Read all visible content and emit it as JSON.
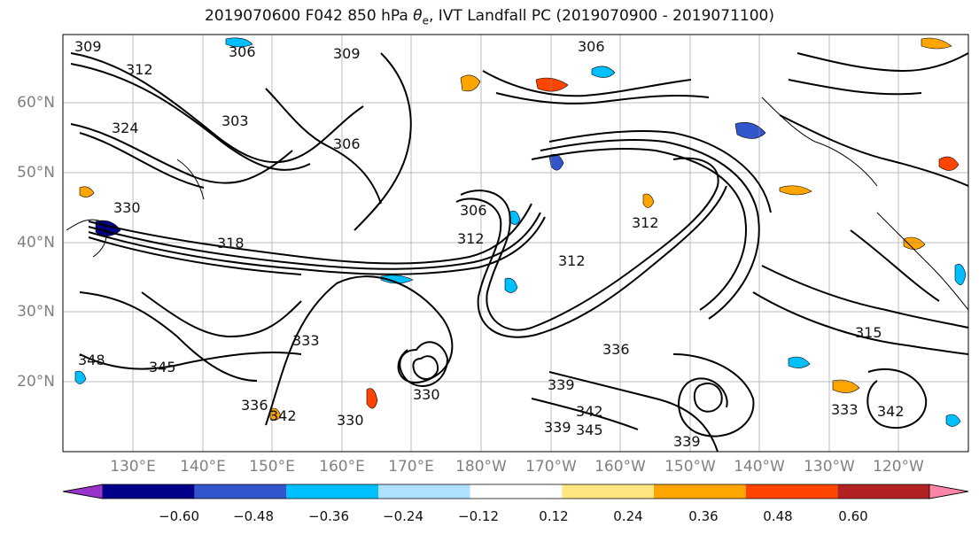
{
  "title": {
    "text_before": "2019070600 F042 850 hPa ",
    "symbol": "θ",
    "subscript": "e",
    "text_after": ", IVT Landfall PC (2019070900 - 2019071100)"
  },
  "map": {
    "lat_labels": [
      "60°N",
      "50°N",
      "40°N",
      "30°N",
      "20°N"
    ],
    "lon_labels": [
      "130°E",
      "140°E",
      "150°E",
      "160°E",
      "170°E",
      "180°W",
      "170°W",
      "160°W",
      "150°W",
      "140°W",
      "130°W",
      "120°W"
    ],
    "contour_labels": [
      "309",
      "306",
      "312",
      "303",
      "306",
      "312",
      "330",
      "318",
      "306",
      "312",
      "312",
      "339",
      "333",
      "345",
      "348",
      "330",
      "336",
      "342",
      "339",
      "345",
      "339",
      "336",
      "342",
      "315",
      "342",
      "333",
      "330",
      "309",
      "306",
      "324"
    ],
    "grid": true
  },
  "colorbar": {
    "colors": [
      "#9933cc",
      "#00008b",
      "#3355cc",
      "#00bfff",
      "#b0e0ff",
      "#ffffff",
      "#ffe680",
      "#ffa500",
      "#ff4500",
      "#b22222",
      "#ff85a8"
    ],
    "tick_labels": [
      "−0.60",
      "−0.48",
      "−0.36",
      "−0.24",
      "−0.12",
      "0.12",
      "0.24",
      "0.36",
      "0.48",
      "0.60"
    ],
    "extend": "both"
  }
}
